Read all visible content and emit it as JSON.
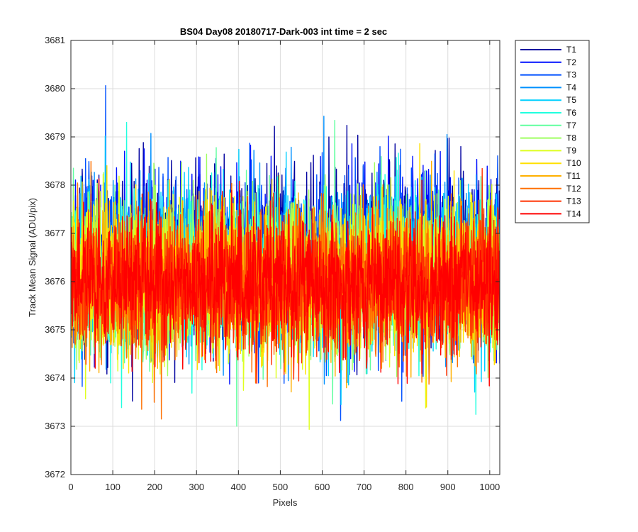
{
  "chart_data": {
    "type": "line",
    "title": "BS04 Day08 20180717-Dark-003 int time = 2 sec",
    "xlabel": "Pixels",
    "ylabel": "Track Mean Signal (ADU/pix)",
    "xlim": [
      0,
      1024
    ],
    "ylim": [
      3672,
      3681
    ],
    "xticks": [
      0,
      100,
      200,
      300,
      400,
      500,
      600,
      700,
      800,
      900,
      1000
    ],
    "yticks": [
      3672,
      3673,
      3674,
      3675,
      3676,
      3677,
      3678,
      3679,
      3680,
      3681
    ],
    "grid": true,
    "legend_position": "outside top-right",
    "signal_summary": {
      "sample_count": 1024,
      "approx_mean": 3676.0,
      "note_min_max": [
        3672.6,
        3680.6
      ]
    },
    "series": [
      {
        "name": "T1",
        "color": "#00009f",
        "base": 3676.6,
        "spread": 1.6
      },
      {
        "name": "T2",
        "color": "#0010ff",
        "base": 3676.5,
        "spread": 1.55
      },
      {
        "name": "T3",
        "color": "#0050ff",
        "base": 3676.4,
        "spread": 1.5
      },
      {
        "name": "T4",
        "color": "#0090ff",
        "base": 3676.3,
        "spread": 1.5
      },
      {
        "name": "T5",
        "color": "#00d0ff",
        "base": 3676.2,
        "spread": 1.5
      },
      {
        "name": "T6",
        "color": "#20ffdf",
        "base": 3676.2,
        "spread": 1.45
      },
      {
        "name": "T7",
        "color": "#60ff9f",
        "base": 3676.1,
        "spread": 1.45
      },
      {
        "name": "T8",
        "color": "#9fff60",
        "base": 3676.1,
        "spread": 1.45
      },
      {
        "name": "T9",
        "color": "#dfff20",
        "base": 3676.1,
        "spread": 1.4
      },
      {
        "name": "T10",
        "color": "#ffe000",
        "base": 3676.0,
        "spread": 1.4
      },
      {
        "name": "T11",
        "color": "#ffb000",
        "base": 3676.0,
        "spread": 1.35
      },
      {
        "name": "T12",
        "color": "#ff7000",
        "base": 3676.0,
        "spread": 1.35
      },
      {
        "name": "T13",
        "color": "#ff3000",
        "base": 3675.95,
        "spread": 1.3
      },
      {
        "name": "T14",
        "color": "#ff0000",
        "base": 3675.95,
        "spread": 1.3
      }
    ]
  }
}
